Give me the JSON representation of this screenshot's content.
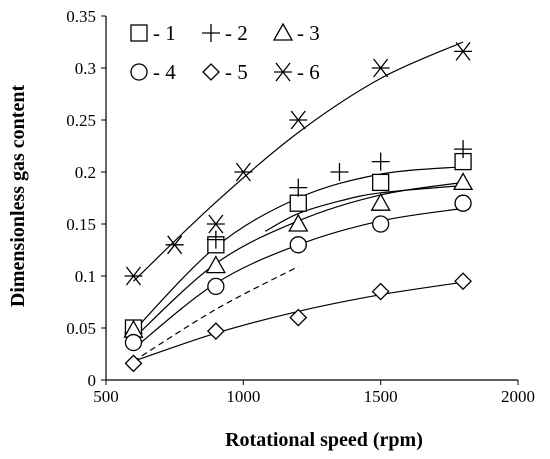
{
  "chart_data": {
    "type": "scatter",
    "xlabel": "Rotational speed (rpm)",
    "ylabel": "Dimensionless gas content",
    "xlim": [
      500,
      2000
    ],
    "ylim": [
      0,
      0.35
    ],
    "xticks": [
      "500",
      "1000",
      "1500",
      "2000"
    ],
    "yticks": [
      "0",
      "0.05",
      "0.1",
      "0.15",
      "0.2",
      "0.25",
      "0.3",
      "0.35"
    ],
    "grid": false,
    "legend_position": "top-left",
    "series": [
      {
        "name": "1",
        "marker": "square",
        "x": [
          600,
          900,
          1200,
          1500,
          1800
        ],
        "y": [
          0.05,
          0.13,
          0.17,
          0.19,
          0.21
        ]
      },
      {
        "name": "2",
        "marker": "plus",
        "x": [
          600,
          900,
          1200,
          1350,
          1500,
          1800
        ],
        "y": [
          0.045,
          0.135,
          0.185,
          0.2,
          0.21,
          0.222
        ]
      },
      {
        "name": "3",
        "marker": "triangle",
        "x": [
          600,
          900,
          1200,
          1500,
          1800
        ],
        "y": [
          0.048,
          0.11,
          0.15,
          0.17,
          0.19
        ]
      },
      {
        "name": "4",
        "marker": "circle",
        "x": [
          600,
          900,
          1200,
          1500,
          1800
        ],
        "y": [
          0.036,
          0.09,
          0.13,
          0.15,
          0.17
        ]
      },
      {
        "name": "5",
        "marker": "diamond",
        "x": [
          600,
          900,
          1200,
          1500,
          1800
        ],
        "y": [
          0.016,
          0.047,
          0.06,
          0.085,
          0.095
        ]
      },
      {
        "name": "6",
        "marker": "asterisk",
        "x": [
          600,
          750,
          900,
          1000,
          1200,
          1500,
          1800
        ],
        "y": [
          0.1,
          0.13,
          0.15,
          0.2,
          0.25,
          0.3,
          0.316
        ]
      }
    ],
    "fitted_curves": [
      {
        "series": "1",
        "style": "solid",
        "x": [
          600,
          900,
          1200,
          1500,
          1800
        ],
        "y": [
          0.047,
          0.128,
          0.175,
          0.198,
          0.205
        ]
      },
      {
        "series": "3",
        "style": "solid",
        "x": [
          600,
          900,
          1200,
          1500,
          1800
        ],
        "y": [
          0.04,
          0.112,
          0.153,
          0.178,
          0.19
        ]
      },
      {
        "series": "4",
        "style": "solid",
        "x": [
          600,
          900,
          1200,
          1500,
          1800
        ],
        "y": [
          0.03,
          0.093,
          0.13,
          0.153,
          0.165
        ]
      },
      {
        "series": "5",
        "style": "solid",
        "x": [
          600,
          900,
          1200,
          1500,
          1800
        ],
        "y": [
          0.018,
          0.045,
          0.066,
          0.082,
          0.094
        ]
      },
      {
        "series": "6",
        "style": "solid",
        "x": [
          600,
          900,
          1200,
          1500,
          1800
        ],
        "y": [
          0.095,
          0.171,
          0.238,
          0.29,
          0.325
        ]
      },
      {
        "series": "2",
        "style": "solid",
        "x": [
          1080,
          1200,
          1350,
          1500,
          1800
        ],
        "y": [
          0.143,
          0.16,
          0.172,
          0.18,
          0.187
        ]
      },
      {
        "series": "",
        "style": "dashed",
        "x": [
          600,
          900,
          1200
        ],
        "y": [
          0.018,
          0.068,
          0.109
        ]
      }
    ],
    "legend_prefix": "- "
  }
}
